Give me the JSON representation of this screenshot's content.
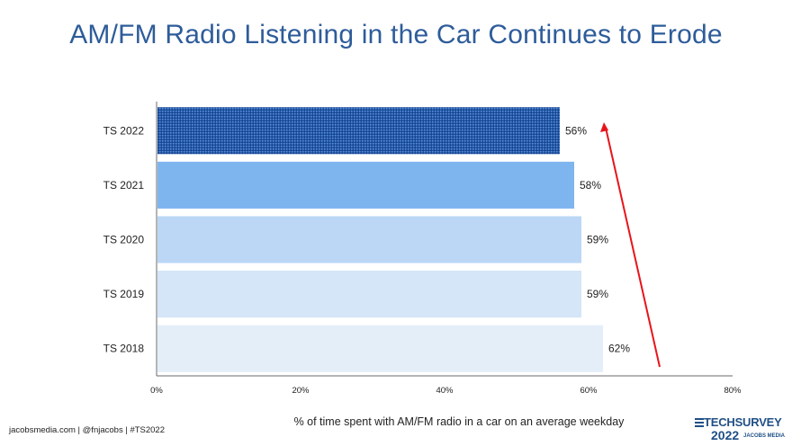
{
  "title": "AM/FM Radio Listening in the Car Continues to Erode",
  "footer": {
    "left": "jacobsmedia.com  |  @fnjacobs  |  #TS2022",
    "logo_line1": "TECHSURVEY",
    "logo_line2": "2022",
    "logo_line3": "JACOBS MEDIA"
  },
  "colors": {
    "title": "#2e5c9a",
    "arrow": "#e8141b",
    "bars": [
      "#1f56a8",
      "#7fb5ef",
      "#bcd7f5",
      "#d4e6f8",
      "#e4eef9"
    ]
  },
  "chart_data": {
    "type": "bar",
    "orientation": "horizontal",
    "categories": [
      "TS 2022",
      "TS 2021",
      "TS 2020",
      "TS 2019",
      "TS 2018"
    ],
    "values": [
      56,
      58,
      59,
      59,
      62
    ],
    "data_labels": [
      "56%",
      "58%",
      "59%",
      "59%",
      "62%"
    ],
    "xlabel": "% of time spent with AM/FM radio in a car on an average weekday",
    "xlim": [
      0,
      80
    ],
    "xticks": [
      0,
      20,
      40,
      60,
      80
    ],
    "xtick_labels": [
      "0%",
      "20%",
      "40%",
      "60%",
      "80%"
    ],
    "grid": false,
    "highlight": "TS 2022",
    "annotation": "upward-arrow"
  }
}
